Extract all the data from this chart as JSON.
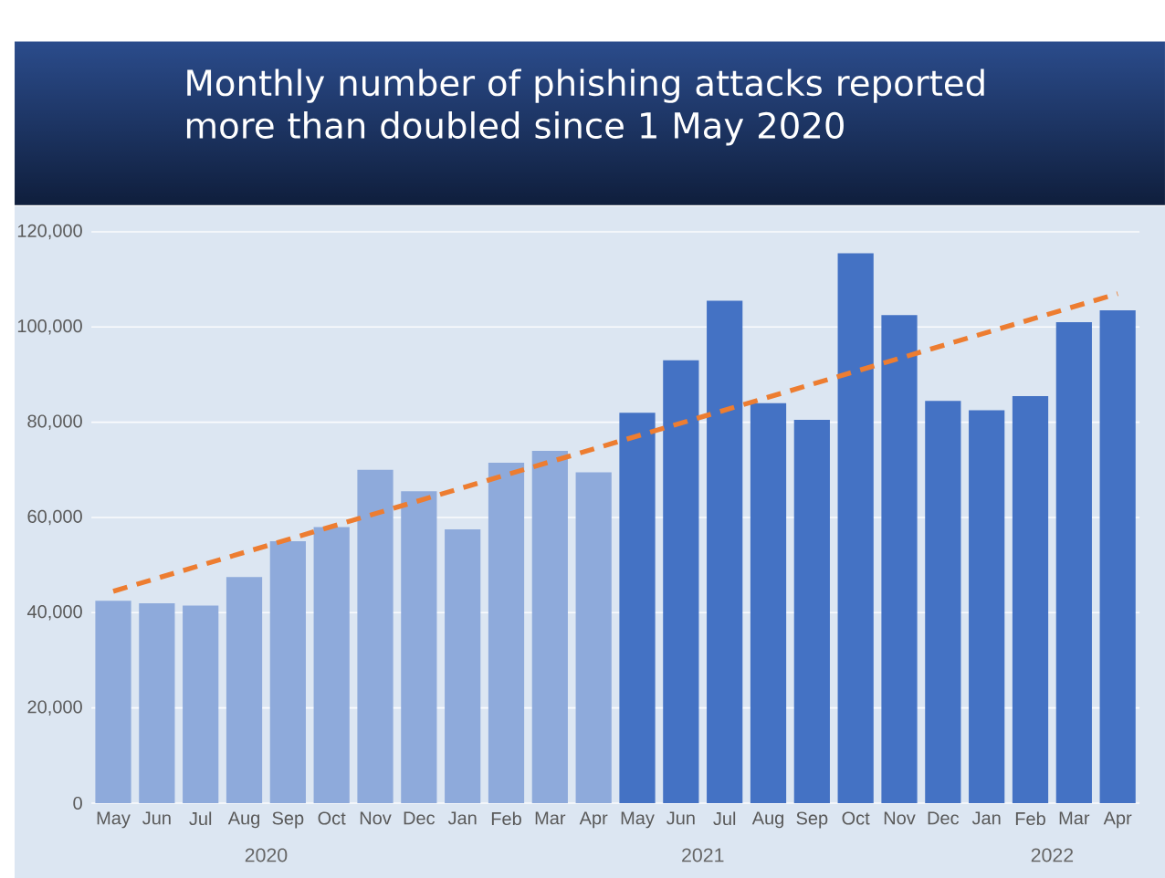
{
  "chart_data": {
    "type": "bar",
    "title": "Monthly number of phishing attacks reported more than doubled since 1 May 2020",
    "categories": [
      "May",
      "Jun",
      "Jul",
      "Aug",
      "Sep",
      "Oct",
      "Nov",
      "Dec",
      "Jan",
      "Feb",
      "Mar",
      "Apr",
      "May",
      "Jun",
      "Jul",
      "Aug",
      "Sep",
      "Oct",
      "Nov",
      "Dec",
      "Jan",
      "Feb",
      "Mar",
      "Apr"
    ],
    "series": [
      {
        "values": [
          42500,
          42000,
          41500,
          47500,
          55000,
          58000,
          70000,
          65500,
          57500,
          71500,
          74000,
          69500,
          82000,
          93000,
          105500,
          84000,
          80500,
          115500,
          102500,
          84500,
          82500,
          85500,
          101000,
          103500
        ],
        "colors": [
          "#8eaadb",
          "#8eaadb",
          "#8eaadb",
          "#8eaadb",
          "#8eaadb",
          "#8eaadb",
          "#8eaadb",
          "#8eaadb",
          "#8eaadb",
          "#8eaadb",
          "#8eaadb",
          "#8eaadb",
          "#4472c4",
          "#4472c4",
          "#4472c4",
          "#4472c4",
          "#4472c4",
          "#4472c4",
          "#4472c4",
          "#4472c4",
          "#4472c4",
          "#4472c4",
          "#4472c4",
          "#4472c4"
        ]
      },
      {
        "type": "line",
        "color": "#ed7d31",
        "line_style": "dashed",
        "values": [
          44500,
          null,
          null,
          null,
          null,
          null,
          null,
          null,
          null,
          null,
          null,
          null,
          null,
          null,
          null,
          null,
          null,
          null,
          null,
          null,
          null,
          null,
          null,
          107000
        ]
      }
    ],
    "ylim": [
      0,
      120000
    ],
    "yticks": [
      0,
      {
        "value": 20000,
        "label": "20,000"
      },
      {
        "value": 40000,
        "label": "40,000"
      },
      {
        "value": 60000,
        "label": "60,000"
      },
      {
        "value": 80000,
        "label": "80,000"
      },
      {
        "value": 100000,
        "label": "100,000"
      },
      {
        "value": 120000,
        "label": "120,000"
      }
    ],
    "grid": "y",
    "annotations": [
      "2020",
      "2021",
      "2022"
    ]
  }
}
